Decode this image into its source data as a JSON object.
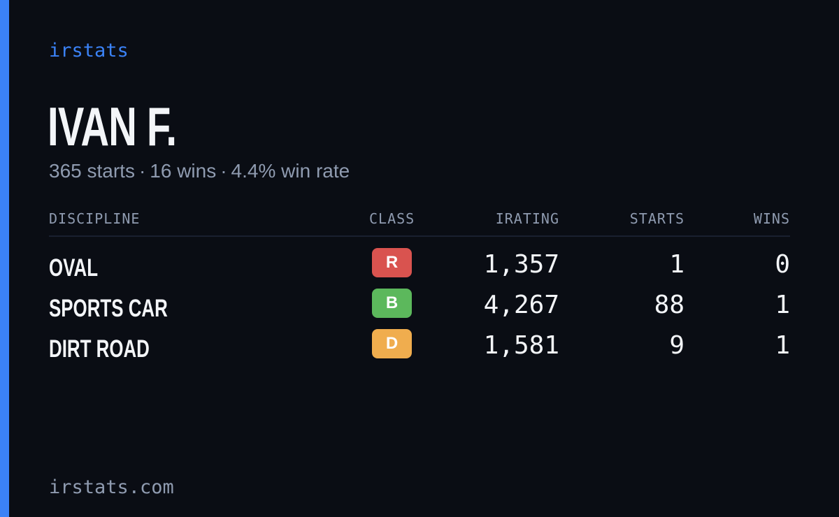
{
  "brand": "irstats",
  "driver": {
    "name": "IVAN F.",
    "starts_text": "365 starts",
    "wins_text": "16 wins",
    "winrate_text": "4.4% win rate",
    "separator": "·"
  },
  "table": {
    "headers": {
      "discipline": "DISCIPLINE",
      "class": "CLASS",
      "irating": "IRATING",
      "starts": "STARTS",
      "wins": "WINS"
    },
    "rows": [
      {
        "discipline": "OVAL",
        "class": "R",
        "class_color": "#d9534f",
        "irating": "1,357",
        "starts": "1",
        "wins": "0"
      },
      {
        "discipline": "SPORTS CAR",
        "class": "B",
        "class_color": "#5cb85c",
        "irating": "4,267",
        "starts": "88",
        "wins": "1"
      },
      {
        "discipline": "DIRT ROAD",
        "class": "D",
        "class_color": "#f0ad4e",
        "irating": "1,581",
        "starts": "9",
        "wins": "1"
      }
    ]
  },
  "footer": "irstats.com",
  "colors": {
    "accent": "#3b82f6",
    "background": "#0a0d14",
    "text": "#f3f5f8",
    "muted": "#8f9bb0"
  }
}
